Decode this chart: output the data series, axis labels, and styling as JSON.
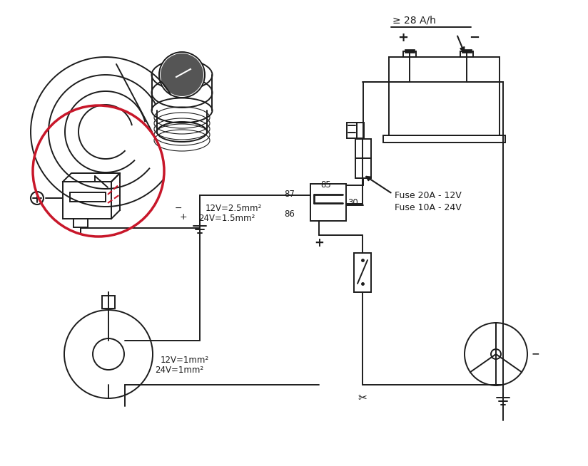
{
  "bg_color": "#ffffff",
  "lc": "#1c1c1c",
  "red": "#c8172a",
  "battery_label": "≥ 28 A/h",
  "plus": "+",
  "minus": "−",
  "fuse1": "Fuse 20A - 12V",
  "fuse2": "Fuse 10A - 24V",
  "r85": "85",
  "r87": "87",
  "r30": "30",
  "r86": "86",
  "wl1": "12V=2.5mm²",
  "wl2": "24V=1.5mm²",
  "wl3": "12V=1mm²",
  "wl4": "24V=1mm²",
  "plus_bot": "+"
}
